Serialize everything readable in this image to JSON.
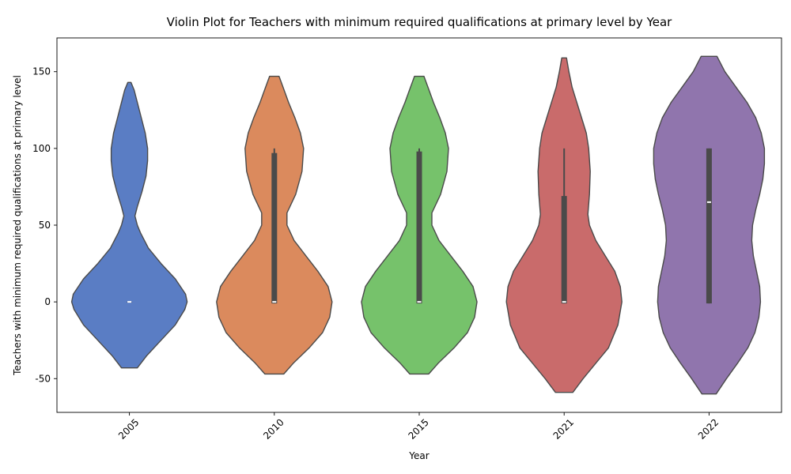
{
  "chart_data": {
    "type": "violin",
    "title": "Violin Plot for Teachers with minimum required qualifications at primary level by Year",
    "xlabel": "Year",
    "ylabel": "Teachers with minimum required qualifications at primary level",
    "ylim": [
      -72,
      172
    ],
    "yticks": [
      -50,
      0,
      50,
      100,
      150
    ],
    "categories": [
      "2005",
      "2010",
      "2015",
      "2021",
      "2022"
    ],
    "colors": [
      "#5a7dc4",
      "#db8a5d",
      "#76c26b",
      "#c96b6b",
      "#9075ad"
    ],
    "grid": false,
    "violins": [
      {
        "category": "2005",
        "min": -43,
        "max": 143,
        "q1": 0,
        "median": 0,
        "q3": 0,
        "whisker_low": 0,
        "whisker_high": 0,
        "density": [
          [
            -43,
            10
          ],
          [
            -35,
            22
          ],
          [
            -25,
            40
          ],
          [
            -15,
            58
          ],
          [
            -5,
            70
          ],
          [
            0,
            73
          ],
          [
            5,
            71
          ],
          [
            15,
            58
          ],
          [
            25,
            40
          ],
          [
            35,
            24
          ],
          [
            45,
            14
          ],
          [
            50,
            10
          ],
          [
            56,
            7
          ],
          [
            62,
            10
          ],
          [
            72,
            16
          ],
          [
            82,
            21
          ],
          [
            92,
            23
          ],
          [
            100,
            23
          ],
          [
            110,
            20
          ],
          [
            120,
            15
          ],
          [
            130,
            10
          ],
          [
            138,
            6
          ],
          [
            143,
            2
          ]
        ]
      },
      {
        "category": "2010",
        "min": -47,
        "max": 147,
        "q1": -1,
        "median": 0,
        "q3": 97,
        "whisker_low": -1,
        "whisker_high": 100,
        "density": [
          [
            -47,
            12
          ],
          [
            -40,
            24
          ],
          [
            -30,
            44
          ],
          [
            -20,
            61
          ],
          [
            -10,
            70
          ],
          [
            0,
            73
          ],
          [
            10,
            68
          ],
          [
            20,
            55
          ],
          [
            30,
            40
          ],
          [
            40,
            25
          ],
          [
            50,
            16
          ],
          [
            58,
            16
          ],
          [
            70,
            27
          ],
          [
            85,
            35
          ],
          [
            100,
            37
          ],
          [
            110,
            33
          ],
          [
            120,
            26
          ],
          [
            130,
            18
          ],
          [
            140,
            11
          ],
          [
            147,
            6
          ]
        ]
      },
      {
        "category": "2015",
        "min": -47,
        "max": 147,
        "q1": -1,
        "median": 0,
        "q3": 98,
        "whisker_low": -1,
        "whisker_high": 100,
        "density": [
          [
            -47,
            12
          ],
          [
            -40,
            24
          ],
          [
            -30,
            44
          ],
          [
            -20,
            61
          ],
          [
            -10,
            70
          ],
          [
            0,
            73
          ],
          [
            10,
            68
          ],
          [
            20,
            55
          ],
          [
            30,
            40
          ],
          [
            40,
            25
          ],
          [
            50,
            16
          ],
          [
            58,
            16
          ],
          [
            70,
            27
          ],
          [
            85,
            35
          ],
          [
            100,
            37
          ],
          [
            110,
            33
          ],
          [
            120,
            26
          ],
          [
            130,
            18
          ],
          [
            140,
            11
          ],
          [
            147,
            6
          ]
        ]
      },
      {
        "category": "2021",
        "min": -59,
        "max": 159,
        "q1": -1,
        "median": 0,
        "q3": 69,
        "whisker_low": -1,
        "whisker_high": 100,
        "density": [
          [
            -59,
            11
          ],
          [
            -50,
            24
          ],
          [
            -40,
            40
          ],
          [
            -30,
            56
          ],
          [
            -15,
            68
          ],
          [
            0,
            73
          ],
          [
            10,
            71
          ],
          [
            20,
            64
          ],
          [
            30,
            52
          ],
          [
            40,
            40
          ],
          [
            50,
            32
          ],
          [
            57,
            30
          ],
          [
            70,
            32
          ],
          [
            85,
            33
          ],
          [
            100,
            31
          ],
          [
            110,
            28
          ],
          [
            120,
            22
          ],
          [
            130,
            16
          ],
          [
            140,
            10
          ],
          [
            150,
            6
          ],
          [
            159,
            3
          ]
        ]
      },
      {
        "category": "2022",
        "min": -60,
        "max": 160,
        "q1": -1,
        "median": 65,
        "q3": 100,
        "whisker_low": -1,
        "whisker_high": 100,
        "density": [
          [
            -60,
            9
          ],
          [
            -50,
            22
          ],
          [
            -40,
            36
          ],
          [
            -30,
            49
          ],
          [
            -20,
            58
          ],
          [
            -10,
            63
          ],
          [
            0,
            65
          ],
          [
            10,
            64
          ],
          [
            20,
            60
          ],
          [
            30,
            56
          ],
          [
            40,
            54
          ],
          [
            50,
            55
          ],
          [
            60,
            59
          ],
          [
            70,
            64
          ],
          [
            80,
            68
          ],
          [
            90,
            70
          ],
          [
            100,
            70
          ],
          [
            110,
            66
          ],
          [
            120,
            59
          ],
          [
            130,
            48
          ],
          [
            140,
            34
          ],
          [
            150,
            20
          ],
          [
            160,
            10
          ]
        ]
      }
    ]
  }
}
